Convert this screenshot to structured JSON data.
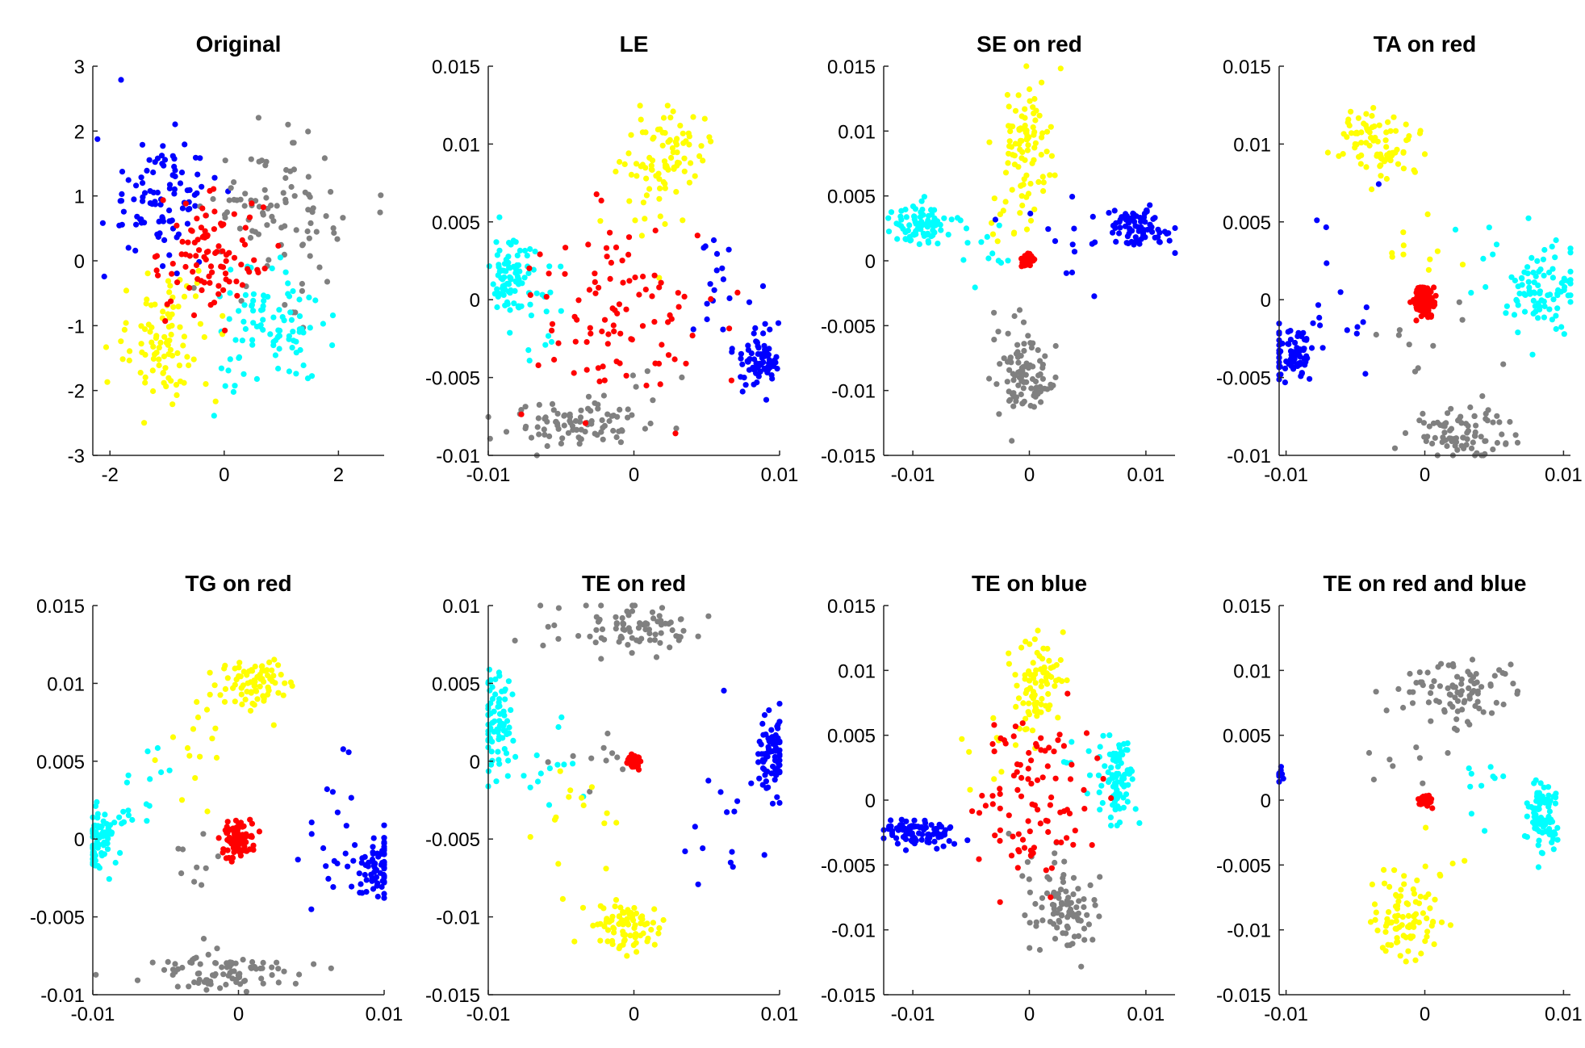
{
  "chart_data": [
    {
      "type": "scatter",
      "title": "Original",
      "xlim": [
        -2.3,
        2.8
      ],
      "ylim": [
        -3,
        3
      ],
      "xticks": [
        -2,
        0,
        2
      ],
      "xtick_labels": [
        "-2",
        "0",
        "2"
      ],
      "yticks": [
        -3,
        -2,
        -1,
        0,
        1,
        2,
        3
      ],
      "ytick_labels": [
        "-3",
        "-2",
        "-1",
        "0",
        "1",
        "2",
        "3"
      ],
      "series": [
        {
          "color": "#0000ff",
          "clusters": [
            [
              -1.1,
              1.0,
              0.5,
              0.45,
              95
            ],
            [
              -1.8,
              2.78,
              0.02,
              0.02,
              1
            ],
            [
              -2.2,
              1.9,
              0.02,
              0.02,
              1
            ]
          ]
        },
        {
          "color": "#808080",
          "clusters": [
            [
              0.9,
              0.7,
              0.55,
              0.55,
              95
            ],
            [
              2.7,
              0.8,
              0.05,
              0.1,
              2
            ]
          ]
        },
        {
          "color": "#00ffff",
          "clusters": [
            [
              0.8,
              -1.1,
              0.5,
              0.45,
              95
            ]
          ]
        },
        {
          "color": "#ffff00",
          "clusters": [
            [
              -1.0,
              -1.2,
              0.45,
              0.5,
              95
            ]
          ]
        },
        {
          "color": "#ff0000",
          "clusters": [
            [
              -0.2,
              0.1,
              0.45,
              0.45,
              95
            ]
          ]
        }
      ]
    },
    {
      "type": "scatter",
      "title": "LE",
      "xlim": [
        -0.01,
        0.01
      ],
      "ylim": [
        -0.01,
        0.015
      ],
      "xticks": [
        -0.01,
        0,
        0.01
      ],
      "xtick_labels": [
        "-0.01",
        "0",
        "0.01"
      ],
      "yticks": [
        -0.01,
        -0.005,
        0,
        0.005,
        0.01,
        0.015
      ],
      "ytick_labels": [
        "-0.01",
        "-0.005",
        "0",
        "0.005",
        "0.01",
        "0.015"
      ],
      "series": [
        {
          "color": "#ffff00",
          "clusters": [
            [
              0.0025,
              0.0095,
              0.0012,
              0.0013,
              80
            ],
            [
              0.0005,
              0.006,
              0.0012,
              0.002,
              15
            ]
          ]
        },
        {
          "color": "#00ffff",
          "clusters": [
            [
              -0.0085,
              0.0015,
              0.0007,
              0.0012,
              80
            ],
            [
              -0.006,
              -0.001,
              0.0014,
              0.002,
              15
            ]
          ]
        },
        {
          "color": "#0000ff",
          "clusters": [
            [
              0.0085,
              -0.0037,
              0.0007,
              0.0009,
              75
            ],
            [
              0.006,
              0.001,
              0.0015,
              0.0025,
              20
            ]
          ]
        },
        {
          "color": "#808080",
          "clusters": [
            [
              -0.004,
              -0.008,
              0.0022,
              0.0008,
              85
            ],
            [
              0.0,
              -0.006,
              0.0015,
              0.0012,
              10
            ]
          ]
        },
        {
          "color": "#ff0000",
          "clusters": [
            [
              -0.0005,
              -0.001,
              0.0035,
              0.003,
              95
            ]
          ]
        }
      ]
    },
    {
      "type": "scatter",
      "title": "SE on red",
      "xlim": [
        -0.0125,
        0.0125
      ],
      "ylim": [
        -0.015,
        0.015
      ],
      "xticks": [
        -0.01,
        0,
        0.01
      ],
      "xtick_labels": [
        "-0.01",
        "0",
        "0.01"
      ],
      "yticks": [
        -0.015,
        -0.01,
        -0.005,
        0,
        0.005,
        0.01,
        0.015
      ],
      "ytick_labels": [
        "-0.015",
        "-0.01",
        "-0.005",
        "0",
        "0.005",
        "0.01",
        "0.015"
      ],
      "series": [
        {
          "color": "#ffff00",
          "clusters": [
            [
              -0.0002,
              0.009,
              0.0012,
              0.0025,
              90
            ],
            [
              -0.0015,
              0.003,
              0.0015,
              0.0015,
              10
            ]
          ]
        },
        {
          "color": "#00ffff",
          "clusters": [
            [
              -0.0095,
              0.0028,
              0.0012,
              0.0008,
              80
            ],
            [
              -0.005,
              0.0015,
              0.0025,
              0.0015,
              15
            ]
          ]
        },
        {
          "color": "#0000ff",
          "clusters": [
            [
              0.0095,
              0.0025,
              0.0012,
              0.0008,
              80
            ],
            [
              0.004,
              0.0015,
              0.0025,
              0.002,
              15
            ]
          ]
        },
        {
          "color": "#808080",
          "clusters": [
            [
              -0.0003,
              -0.0095,
              0.0012,
              0.0015,
              85
            ],
            [
              -0.001,
              -0.006,
              0.0015,
              0.0015,
              15
            ]
          ]
        },
        {
          "color": "#ff0000",
          "clusters": [
            [
              -0.0001,
              0.0,
              0.0002,
              0.0002,
              95
            ]
          ]
        }
      ]
    },
    {
      "type": "scatter",
      "title": "TA on red",
      "xlim": [
        -0.0105,
        0.0105
      ],
      "ylim": [
        -0.01,
        0.015
      ],
      "xticks": [
        -0.01,
        0,
        0.01
      ],
      "xtick_labels": [
        "-0.01",
        "0",
        "0.01"
      ],
      "yticks": [
        -0.01,
        -0.005,
        0,
        0.005,
        0.01,
        0.015
      ],
      "ytick_labels": [
        "-0.01",
        "-0.005",
        "0",
        "0.005",
        "0.01",
        "0.015"
      ],
      "series": [
        {
          "color": "#ffff00",
          "clusters": [
            [
              -0.0035,
              0.01,
              0.0013,
              0.0012,
              85
            ],
            [
              0.0005,
              0.0025,
              0.0015,
              0.002,
              10
            ]
          ]
        },
        {
          "color": "#00ffff",
          "clusters": [
            [
              0.0085,
              0.0005,
              0.0013,
              0.0015,
              85
            ],
            [
              0.005,
              0.003,
              0.0015,
              0.002,
              10
            ]
          ]
        },
        {
          "color": "#0000ff",
          "clusters": [
            [
              -0.0095,
              -0.0035,
              0.0008,
              0.0008,
              80
            ],
            [
              -0.0065,
              0.0005,
              0.0015,
              0.0025,
              15
            ]
          ]
        },
        {
          "color": "#808080",
          "clusters": [
            [
              0.0025,
              -0.0085,
              0.0018,
              0.0008,
              85
            ],
            [
              0.001,
              -0.003,
              0.002,
              0.0015,
              10
            ]
          ]
        },
        {
          "color": "#ff0000",
          "clusters": [
            [
              -0.0001,
              0.0,
              0.0004,
              0.0005,
              95
            ]
          ]
        }
      ]
    },
    {
      "type": "scatter",
      "title": "TG on red",
      "xlim": [
        -0.01,
        0.01
      ],
      "ylim": [
        -0.01,
        0.015
      ],
      "xticks": [
        -0.01,
        0,
        0.01
      ],
      "xtick_labels": [
        "-0.01",
        "0",
        "0.01"
      ],
      "yticks": [
        -0.01,
        -0.005,
        0,
        0.005,
        0.01,
        0.015
      ],
      "ytick_labels": [
        "-0.01",
        "-0.005",
        "0",
        "0.005",
        "0.01",
        "0.015"
      ],
      "series": [
        {
          "color": "#ffff00",
          "clusters": [
            [
              0.001,
              0.01,
              0.0012,
              0.0008,
              80
            ],
            [
              -0.003,
              0.006,
              0.0015,
              0.002,
              15
            ]
          ]
        },
        {
          "color": "#00ffff",
          "clusters": [
            [
              -0.0095,
              0.0,
              0.0006,
              0.0012,
              80
            ],
            [
              -0.007,
              0.003,
              0.001,
              0.0015,
              15
            ]
          ]
        },
        {
          "color": "#0000ff",
          "clusters": [
            [
              0.0095,
              -0.002,
              0.0007,
              0.001,
              75
            ],
            [
              0.007,
              0.001,
              0.0012,
              0.003,
              20
            ]
          ]
        },
        {
          "color": "#808080",
          "clusters": [
            [
              -0.001,
              -0.0085,
              0.0025,
              0.0006,
              85
            ],
            [
              -0.003,
              -0.002,
              0.0015,
              0.0015,
              10
            ]
          ]
        },
        {
          "color": "#ff0000",
          "clusters": [
            [
              0.0,
              0.0,
              0.0005,
              0.0006,
              95
            ]
          ]
        }
      ]
    },
    {
      "type": "scatter",
      "title": "TE on red",
      "xlim": [
        -0.01,
        0.01
      ],
      "ylim": [
        -0.015,
        0.01
      ],
      "xticks": [
        -0.01,
        0,
        0.01
      ],
      "xtick_labels": [
        "-0.01",
        "0",
        "0.01"
      ],
      "yticks": [
        -0.015,
        -0.01,
        -0.005,
        0,
        0.005,
        0.01
      ],
      "ytick_labels": [
        "-0.015",
        "-0.01",
        "-0.005",
        "0",
        "0.005",
        "0.01"
      ],
      "series": [
        {
          "color": "#808080",
          "clusters": [
            [
              0.0,
              0.0085,
              0.0025,
              0.0008,
              85
            ],
            [
              -0.003,
              0.001,
              0.0015,
              0.0015,
              10
            ]
          ]
        },
        {
          "color": "#00ffff",
          "clusters": [
            [
              -0.0093,
              0.0025,
              0.0006,
              0.0015,
              80
            ],
            [
              -0.006,
              0.0,
              0.0015,
              0.002,
              15
            ]
          ]
        },
        {
          "color": "#0000ff",
          "clusters": [
            [
              0.0095,
              0.0005,
              0.0006,
              0.0012,
              80
            ],
            [
              0.006,
              -0.004,
              0.0015,
              0.003,
              15
            ]
          ]
        },
        {
          "color": "#ffff00",
          "clusters": [
            [
              -0.0005,
              -0.0105,
              0.0012,
              0.0008,
              80
            ],
            [
              -0.004,
              -0.004,
              0.0015,
              0.003,
              15
            ]
          ]
        },
        {
          "color": "#ff0000",
          "clusters": [
            [
              0.0,
              0.0,
              0.0002,
              0.0002,
              95
            ]
          ]
        }
      ]
    },
    {
      "type": "scatter",
      "title": "TE on blue",
      "xlim": [
        -0.0125,
        0.0125
      ],
      "ylim": [
        -0.015,
        0.015
      ],
      "xticks": [
        -0.01,
        0,
        0.01
      ],
      "xtick_labels": [
        "-0.01",
        "0",
        "0.01"
      ],
      "yticks": [
        -0.015,
        -0.01,
        -0.005,
        0,
        0.005,
        0.01,
        0.015
      ],
      "ytick_labels": [
        "-0.015",
        "-0.01",
        "-0.005",
        "0",
        "0.005",
        "0.01",
        "0.015"
      ],
      "series": [
        {
          "color": "#0000ff",
          "clusters": [
            [
              -0.0095,
              -0.0025,
              0.0015,
              0.0005,
              90
            ]
          ]
        },
        {
          "color": "#ffff00",
          "clusters": [
            [
              0.0005,
              0.009,
              0.0012,
              0.0018,
              85
            ],
            [
              -0.002,
              0.004,
              0.0015,
              0.002,
              10
            ]
          ]
        },
        {
          "color": "#00ffff",
          "clusters": [
            [
              0.0075,
              0.0015,
              0.0008,
              0.0015,
              85
            ],
            [
              0.005,
              0.0035,
              0.0012,
              0.0012,
              10
            ]
          ]
        },
        {
          "color": "#808080",
          "clusters": [
            [
              0.003,
              -0.0085,
              0.0015,
              0.0015,
              85
            ],
            [
              0.001,
              -0.005,
              0.0015,
              0.0015,
              10
            ]
          ]
        },
        {
          "color": "#ff0000",
          "clusters": [
            [
              0.0005,
              0.0,
              0.0025,
              0.0035,
              95
            ]
          ]
        }
      ]
    },
    {
      "type": "scatter",
      "title": "TE on red and blue",
      "xlim": [
        -0.0105,
        0.0105
      ],
      "ylim": [
        -0.015,
        0.015
      ],
      "xticks": [
        -0.01,
        0,
        0.01
      ],
      "xtick_labels": [
        "-0.01",
        "0",
        "0.01"
      ],
      "yticks": [
        -0.015,
        -0.01,
        -0.005,
        0,
        0.005,
        0.01,
        0.015
      ],
      "ytick_labels": [
        "-0.015",
        "-0.01",
        "-0.005",
        "0",
        "0.005",
        "0.01",
        "0.015"
      ],
      "series": [
        {
          "color": "#808080",
          "clusters": [
            [
              0.003,
              0.0085,
              0.002,
              0.0012,
              85
            ],
            [
              -0.001,
              0.0035,
              0.0015,
              0.0015,
              10
            ]
          ]
        },
        {
          "color": "#00ffff",
          "clusters": [
            [
              0.0085,
              -0.001,
              0.0006,
              0.0015,
              85
            ],
            [
              0.004,
              0.001,
              0.001,
              0.002,
              10
            ]
          ]
        },
        {
          "color": "#ffff00",
          "clusters": [
            [
              -0.0015,
              -0.009,
              0.0012,
              0.0015,
              85
            ],
            [
              0.0,
              -0.006,
              0.0015,
              0.002,
              10
            ]
          ]
        },
        {
          "color": "#0000ff",
          "clusters": [
            [
              -0.0105,
              0.002,
              0.0002,
              0.0003,
              10
            ]
          ]
        },
        {
          "color": "#ff0000",
          "clusters": [
            [
              0.0,
              0.0,
              0.0002,
              0.0002,
              95
            ]
          ]
        }
      ]
    }
  ]
}
